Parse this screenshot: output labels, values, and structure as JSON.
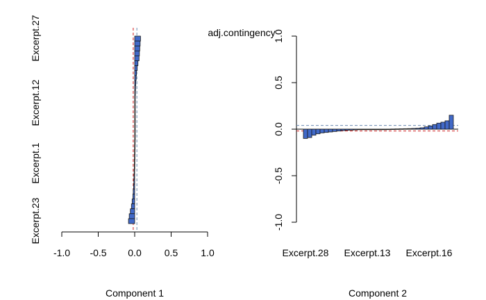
{
  "title": "adj.contingency",
  "colors": {
    "bar_fill": "#4169c8",
    "bar_stroke": "#1a1a1a",
    "axis": "#000000",
    "red_line": "#d02020",
    "blue_line": "#6a8ab0"
  },
  "chart_data": [
    {
      "type": "bar",
      "orientation": "horizontal",
      "xlabel": "Component 1",
      "xlim": [
        -1.0,
        1.0
      ],
      "xticks": [
        "-1.0",
        "-0.5",
        "0.0",
        "0.5",
        "1.0"
      ],
      "category_labels": [
        "Excerpt.27",
        "Excerpt.12",
        "Excerpt.1",
        "Excerpt.23"
      ],
      "reference_lines": {
        "red": -0.02,
        "blue": 0.03
      },
      "values": [
        0.08,
        0.075,
        0.07,
        0.065,
        0.06,
        0.045,
        0.035,
        0.025,
        0.02,
        0.015,
        0.012,
        0.01,
        0.008,
        0.007,
        0.006,
        0.005,
        0.004,
        0.003,
        0.002,
        0.001,
        0.0,
        -0.001,
        -0.002,
        -0.003,
        -0.004,
        -0.005,
        -0.006,
        -0.008,
        -0.01,
        -0.012,
        -0.015,
        -0.02,
        -0.025,
        -0.035,
        -0.045,
        -0.06,
        -0.075,
        -0.085
      ]
    },
    {
      "type": "bar",
      "orientation": "vertical",
      "xlabel": "Component 2",
      "ylim": [
        -1.0,
        1.0
      ],
      "yticks": [
        "-1.0",
        "-0.5",
        "0.0",
        "0.5",
        "1.0"
      ],
      "category_labels": [
        "Excerpt.28",
        "Excerpt.13",
        "Excerpt.16"
      ],
      "reference_lines": {
        "red": -0.02,
        "blue": 0.04
      },
      "values": [
        -0.1,
        -0.09,
        -0.065,
        -0.05,
        -0.04,
        -0.035,
        -0.03,
        -0.025,
        -0.02,
        -0.015,
        -0.012,
        -0.01,
        -0.008,
        -0.006,
        -0.005,
        -0.004,
        -0.003,
        -0.002,
        -0.001,
        0.0,
        0.001,
        0.002,
        0.003,
        0.004,
        0.005,
        0.006,
        0.008,
        0.01,
        0.015,
        0.025,
        0.035,
        0.05,
        0.065,
        0.075,
        0.09,
        0.15
      ]
    }
  ]
}
